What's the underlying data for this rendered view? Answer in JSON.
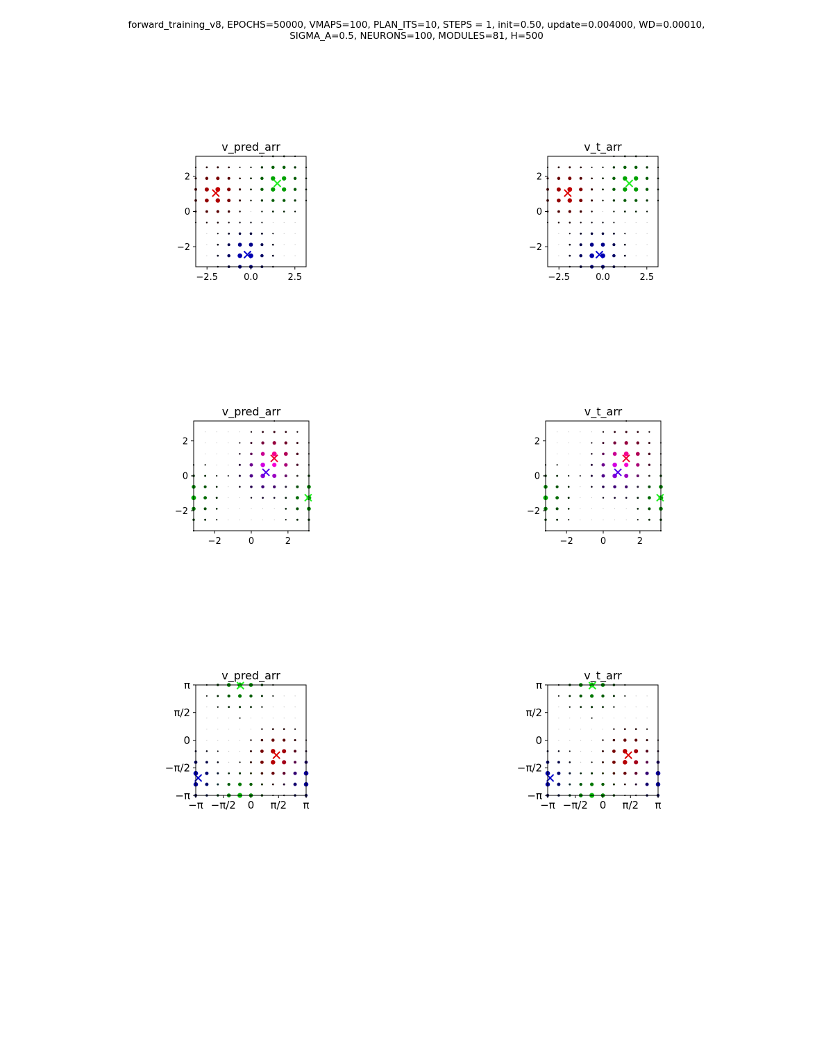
{
  "figure": {
    "title_line1": "forward_training_v8, EPOCHS=50000, VMAPS=100, PLAN_ITS=10, STEPS = 1, init=0.50, update=0.004000, WD=0.00010,",
    "title_line2": "SIGMA_A=0.5, NEURONS=100, MODULES=81, H=500"
  },
  "chart_data": [
    {
      "type": "scatter",
      "title": "v_pred_arr",
      "xlim": [
        -3.14,
        3.14
      ],
      "ylim": [
        -3.14,
        3.14
      ],
      "xticks": [
        -2.5,
        0.0,
        2.5
      ],
      "xtick_labels": [
        "−2.5",
        "0.0",
        "2.5"
      ],
      "yticks": [
        -2,
        0,
        2
      ],
      "ytick_labels": [
        "−2",
        "0",
        "2"
      ],
      "blobs": [
        {
          "color": "#dd0000",
          "center": [
            -2.0,
            1.05
          ],
          "cross": [
            -2.0,
            1.05
          ]
        },
        {
          "color": "#00cc00",
          "center": [
            1.55,
            1.6
          ],
          "cross": [
            1.5,
            1.6
          ]
        },
        {
          "color": "#0000cc",
          "center": [
            -0.3,
            -2.45
          ],
          "cross": [
            -0.2,
            -2.45
          ]
        }
      ]
    },
    {
      "type": "scatter",
      "title": "v_t_arr",
      "xlim": [
        -3.14,
        3.14
      ],
      "ylim": [
        -3.14,
        3.14
      ],
      "xticks": [
        -2.5,
        0.0,
        2.5
      ],
      "xtick_labels": [
        "−2.5",
        "0.0",
        "2.5"
      ],
      "yticks": [
        -2,
        0,
        2
      ],
      "ytick_labels": [
        "−2",
        "0",
        "2"
      ],
      "blobs": [
        {
          "color": "#dd0000",
          "center": [
            -2.0,
            1.05
          ],
          "cross": [
            -2.0,
            1.05
          ]
        },
        {
          "color": "#00cc00",
          "center": [
            1.55,
            1.6
          ],
          "cross": [
            1.5,
            1.6
          ]
        },
        {
          "color": "#0000cc",
          "center": [
            -0.3,
            -2.45
          ],
          "cross": [
            -0.2,
            -2.45
          ]
        }
      ]
    },
    {
      "type": "scatter",
      "title": "v_pred_arr",
      "xlim": [
        -3.14,
        3.14
      ],
      "ylim": [
        -3.14,
        3.14
      ],
      "xticks": [
        -2,
        0,
        2
      ],
      "xtick_labels": [
        "−2",
        "0",
        "2"
      ],
      "yticks": [
        -2,
        0,
        2
      ],
      "ytick_labels": [
        "−2",
        "0",
        "2"
      ],
      "blobs": [
        {
          "color": "#ee0033",
          "center": [
            1.25,
            1.1
          ],
          "cross": [
            1.25,
            1.0
          ]
        },
        {
          "color": "#5500ee",
          "center": [
            0.8,
            0.3
          ],
          "cross": [
            0.8,
            0.2
          ]
        },
        {
          "color": "#00cc00",
          "center": [
            3.4,
            -1.25
          ],
          "cross": [
            3.1,
            -1.25
          ]
        },
        {
          "color": "#00cc00",
          "center": [
            -3.4,
            -1.25
          ]
        }
      ]
    },
    {
      "type": "scatter",
      "title": "v_t_arr",
      "xlim": [
        -3.14,
        3.14
      ],
      "ylim": [
        -3.14,
        3.14
      ],
      "xticks": [
        -2,
        0,
        2
      ],
      "xtick_labels": [
        "−2",
        "0",
        "2"
      ],
      "yticks": [
        -2,
        0,
        2
      ],
      "ytick_labels": [
        "−2",
        "0",
        "2"
      ],
      "blobs": [
        {
          "color": "#ee0033",
          "center": [
            1.25,
            1.1
          ],
          "cross": [
            1.25,
            1.0
          ]
        },
        {
          "color": "#5500ee",
          "center": [
            0.8,
            0.3
          ],
          "cross": [
            0.8,
            0.2
          ]
        },
        {
          "color": "#00cc00",
          "center": [
            3.4,
            -1.25
          ],
          "cross": [
            3.1,
            -1.25
          ]
        },
        {
          "color": "#00cc00",
          "center": [
            -3.4,
            -1.25
          ]
        }
      ]
    },
    {
      "type": "scatter",
      "title": "v_pred_arr",
      "xlim": [
        -3.14,
        3.14
      ],
      "ylim": [
        -3.14,
        3.14
      ],
      "xticks": [
        -3.1416,
        -1.5708,
        0,
        1.5708,
        3.1416
      ],
      "xtick_labels": [
        "−π",
        "−π/2",
        "0",
        "π/2",
        "π"
      ],
      "yticks": [
        -3.1416,
        -1.5708,
        0,
        1.5708,
        3.1416
      ],
      "ytick_labels": [
        "−π",
        "−π/2",
        "0",
        "π/2",
        "π"
      ],
      "blobs": [
        {
          "color": "#00cc00",
          "center": [
            -0.6,
            3.3
          ],
          "cross": [
            -0.6,
            3.1
          ]
        },
        {
          "color": "#00cc00",
          "center": [
            -0.6,
            -3.3
          ]
        },
        {
          "color": "#dd0000",
          "center": [
            1.45,
            -0.95
          ],
          "cross": [
            1.45,
            -0.85
          ]
        },
        {
          "color": "#0000cc",
          "center": [
            -3.3,
            -2.15
          ],
          "cross": [
            -3.0,
            -2.15
          ]
        },
        {
          "color": "#0000cc",
          "center": [
            3.3,
            -2.15
          ]
        }
      ]
    },
    {
      "type": "scatter",
      "title": "v_t_arr",
      "xlim": [
        -3.14,
        3.14
      ],
      "ylim": [
        -3.14,
        3.14
      ],
      "xticks": [
        -3.1416,
        -1.5708,
        0,
        1.5708,
        3.1416
      ],
      "xtick_labels": [
        "−π",
        "−π/2",
        "0",
        "π/2",
        "π"
      ],
      "yticks": [
        -3.1416,
        -1.5708,
        0,
        1.5708,
        3.1416
      ],
      "ytick_labels": [
        "−π",
        "−π/2",
        "0",
        "π/2",
        "π"
      ],
      "blobs": [
        {
          "color": "#00cc00",
          "center": [
            -0.6,
            3.3
          ],
          "cross": [
            -0.6,
            3.1
          ]
        },
        {
          "color": "#00cc00",
          "center": [
            -0.6,
            -3.3
          ]
        },
        {
          "color": "#dd0000",
          "center": [
            1.45,
            -0.95
          ],
          "cross": [
            1.45,
            -0.85
          ]
        },
        {
          "color": "#0000cc",
          "center": [
            -3.3,
            -2.15
          ],
          "cross": [
            -3.0,
            -2.15
          ]
        },
        {
          "color": "#0000cc",
          "center": [
            3.3,
            -2.15
          ]
        }
      ]
    }
  ]
}
